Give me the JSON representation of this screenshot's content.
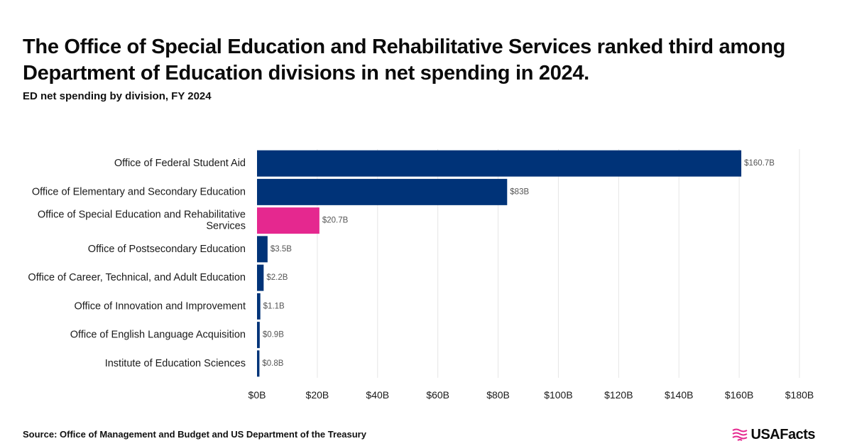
{
  "header": {
    "title": "The Office of Special Education and Rehabilitative Services ranked third among Department of Education divisions in net spending in 2024.",
    "subtitle": "ED net spending by division, FY 2024"
  },
  "footer": {
    "source": "Source: Office of Management and Budget and US Department of the Treasury",
    "brand": "USAFacts"
  },
  "colors": {
    "primary": "#003378",
    "highlight": "#e5288f",
    "grid": "#e6e6e6"
  },
  "chart_data": {
    "type": "bar",
    "orientation": "horizontal",
    "categories": [
      "Office of Federal Student Aid",
      "Office of Elementary and Secondary Education",
      "Office of Special Education and Rehabilitative Services",
      "Office of Postsecondary Education",
      "Office of Career, Technical, and Adult Education",
      "Office of Innovation and Improvement",
      "Office of English Language Acquisition",
      "Institute of Education Sciences"
    ],
    "category_lines": [
      [
        "Office of Federal Student Aid"
      ],
      [
        "Office of Elementary and Secondary Education"
      ],
      [
        "Office of Special Education and Rehabilitative",
        "Services"
      ],
      [
        "Office of Postsecondary Education"
      ],
      [
        "Office of Career, Technical, and Adult Education"
      ],
      [
        "Office of Innovation and Improvement"
      ],
      [
        "Office of English Language Acquisition"
      ],
      [
        "Institute of Education Sciences"
      ]
    ],
    "values": [
      160.7,
      83,
      20.7,
      3.5,
      2.2,
      1.1,
      0.9,
      0.8
    ],
    "value_labels": [
      "$160.7B",
      "$83B",
      "$20.7B",
      "$3.5B",
      "$2.2B",
      "$1.1B",
      "$0.9B",
      "$0.8B"
    ],
    "highlight_index": 2,
    "xlim": [
      0,
      180
    ],
    "x_ticks": [
      0,
      20,
      40,
      60,
      80,
      100,
      120,
      140,
      160,
      180
    ],
    "x_tick_labels": [
      "$0B",
      "$20B",
      "$40B",
      "$60B",
      "$80B",
      "$100B",
      "$120B",
      "$140B",
      "$160B",
      "$180B"
    ],
    "grid": true,
    "legend": "none"
  }
}
